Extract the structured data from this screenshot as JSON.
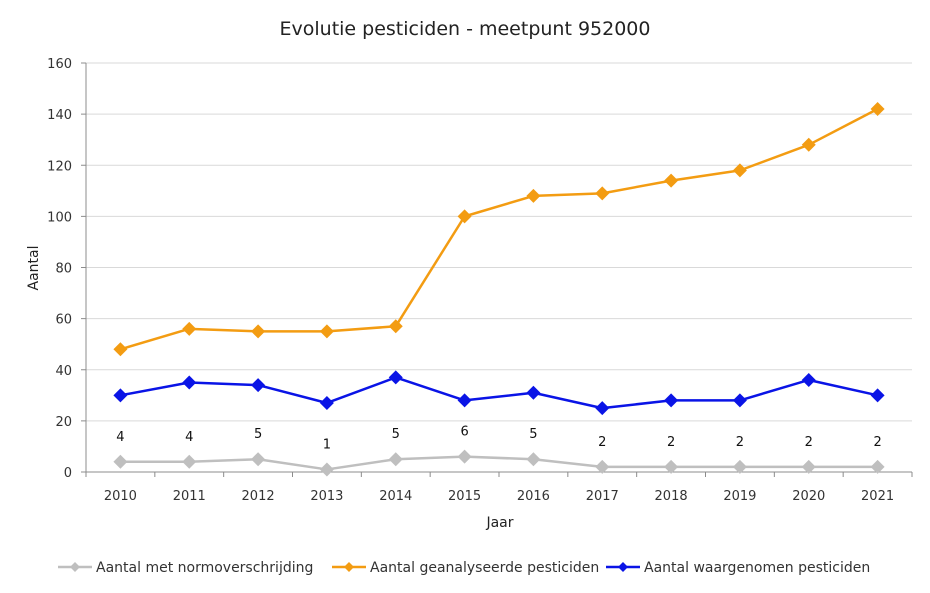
{
  "chart_data": {
    "type": "line",
    "title": "Evolutie pesticiden - meetpunt 952000",
    "xlabel": "Jaar",
    "ylabel": "Aantal",
    "categories": [
      "2010",
      "2011",
      "2012",
      "2013",
      "2014",
      "2015",
      "2016",
      "2017",
      "2018",
      "2019",
      "2020",
      "2021"
    ],
    "ylim": [
      0,
      160
    ],
    "yticks": [
      0,
      20,
      40,
      60,
      80,
      100,
      120,
      140,
      160
    ],
    "grid": true,
    "legend_position": "bottom",
    "series": [
      {
        "name": "Aantal met normoverschrijding",
        "color": "#bfbfbf",
        "values": [
          4,
          4,
          5,
          1,
          5,
          6,
          5,
          2,
          2,
          2,
          2,
          2
        ],
        "data_labels": true
      },
      {
        "name": "Aantal geanalyseerde pesticiden",
        "color": "#f39c12",
        "values": [
          48,
          56,
          55,
          55,
          57,
          100,
          108,
          109,
          114,
          118,
          128,
          142
        ],
        "data_labels": false
      },
      {
        "name": "Aantal waargenomen pesticiden",
        "color": "#0a14e6",
        "values": [
          30,
          35,
          34,
          27,
          37,
          28,
          31,
          25,
          28,
          28,
          36,
          30
        ],
        "data_labels": false
      }
    ]
  }
}
